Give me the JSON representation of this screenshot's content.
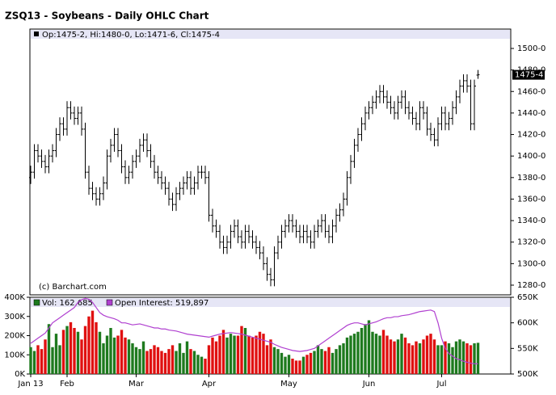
{
  "chart_data": [
    {
      "type": "ohlc",
      "title": "ZSQ13 - Soybeans - Daily OHLC Chart",
      "ohlc_label": "Op:1475-2, Hi:1480-0, Lo:1471-6, Cl:1475-4",
      "credit": "(c) Barchart.com",
      "last_label": "1475-4",
      "color": "#000000",
      "ylim": [
        1271,
        1518
      ],
      "yticks": [
        {
          "value": 1280,
          "label": "1280-0"
        },
        {
          "value": 1300,
          "label": "1300-0"
        },
        {
          "value": 1320,
          "label": "1320-0"
        },
        {
          "value": 1340,
          "label": "1340-0"
        },
        {
          "value": 1360,
          "label": "1360-0"
        },
        {
          "value": 1380,
          "label": "1380-0"
        },
        {
          "value": 1400,
          "label": "1400-0"
        },
        {
          "value": 1420,
          "label": "1420-0"
        },
        {
          "value": 1440,
          "label": "1440-0"
        },
        {
          "value": 1460,
          "label": "1460-0"
        },
        {
          "value": 1480,
          "label": "1480-0"
        },
        {
          "value": 1500,
          "label": "1500-0"
        }
      ],
      "open": [
        1380,
        1385,
        1405,
        1400,
        1395,
        1390,
        1400,
        1405,
        1420,
        1430,
        1425,
        1445,
        1440,
        1435,
        1440,
        1425,
        1385,
        1370,
        1365,
        1360,
        1365,
        1375,
        1400,
        1410,
        1420,
        1405,
        1390,
        1380,
        1385,
        1395,
        1400,
        1410,
        1415,
        1405,
        1395,
        1385,
        1380,
        1375,
        1370,
        1360,
        1355,
        1365,
        1370,
        1375,
        1380,
        1370,
        1375,
        1385,
        1385,
        1380,
        1345,
        1335,
        1330,
        1320,
        1315,
        1320,
        1330,
        1335,
        1325,
        1320,
        1330,
        1325,
        1320,
        1315,
        1310,
        1300,
        1290,
        1285,
        1310,
        1320,
        1330,
        1335,
        1340,
        1335,
        1330,
        1325,
        1330,
        1325,
        1320,
        1330,
        1335,
        1340,
        1330,
        1325,
        1335,
        1345,
        1350,
        1360,
        1380,
        1395,
        1410,
        1420,
        1430,
        1440,
        1445,
        1450,
        1455,
        1460,
        1455,
        1450,
        1445,
        1440,
        1450,
        1455,
        1445,
        1440,
        1435,
        1430,
        1445,
        1440,
        1425,
        1420,
        1415,
        1430,
        1440,
        1430,
        1435,
        1445,
        1455,
        1465,
        1470,
        1465,
        1430,
        1475.25
      ],
      "high": [
        1391,
        1411,
        1411,
        1406,
        1401,
        1406,
        1411,
        1426,
        1436,
        1436,
        1451,
        1451,
        1446,
        1446,
        1446,
        1431,
        1391,
        1376,
        1371,
        1371,
        1381,
        1406,
        1416,
        1426,
        1426,
        1411,
        1396,
        1391,
        1401,
        1406,
        1416,
        1421,
        1421,
        1411,
        1401,
        1391,
        1386,
        1381,
        1376,
        1366,
        1371,
        1376,
        1381,
        1386,
        1386,
        1381,
        1391,
        1391,
        1391,
        1386,
        1351,
        1341,
        1336,
        1326,
        1326,
        1336,
        1341,
        1341,
        1331,
        1336,
        1336,
        1331,
        1326,
        1321,
        1316,
        1306,
        1296,
        1316,
        1326,
        1336,
        1341,
        1346,
        1346,
        1341,
        1336,
        1336,
        1336,
        1331,
        1336,
        1341,
        1346,
        1346,
        1336,
        1341,
        1351,
        1356,
        1366,
        1386,
        1401,
        1416,
        1426,
        1436,
        1446,
        1451,
        1456,
        1461,
        1466,
        1466,
        1461,
        1456,
        1451,
        1456,
        1461,
        1461,
        1451,
        1446,
        1441,
        1451,
        1451,
        1446,
        1431,
        1426,
        1436,
        1446,
        1446,
        1441,
        1451,
        1461,
        1471,
        1476,
        1476,
        1471,
        1471,
        1480
      ],
      "low": [
        1374,
        1379,
        1394,
        1389,
        1384,
        1384,
        1394,
        1399,
        1414,
        1419,
        1419,
        1434,
        1429,
        1429,
        1419,
        1379,
        1364,
        1359,
        1354,
        1354,
        1359,
        1369,
        1394,
        1404,
        1399,
        1384,
        1374,
        1374,
        1379,
        1389,
        1394,
        1404,
        1399,
        1389,
        1379,
        1374,
        1369,
        1364,
        1354,
        1349,
        1349,
        1359,
        1364,
        1369,
        1364,
        1364,
        1369,
        1379,
        1374,
        1339,
        1329,
        1324,
        1314,
        1309,
        1309,
        1314,
        1324,
        1319,
        1314,
        1314,
        1319,
        1314,
        1309,
        1304,
        1294,
        1284,
        1279,
        1279,
        1304,
        1314,
        1324,
        1329,
        1329,
        1324,
        1319,
        1319,
        1319,
        1314,
        1314,
        1324,
        1329,
        1324,
        1319,
        1319,
        1329,
        1339,
        1344,
        1354,
        1374,
        1389,
        1404,
        1414,
        1424,
        1434,
        1439,
        1444,
        1449,
        1449,
        1444,
        1439,
        1434,
        1434,
        1444,
        1439,
        1434,
        1429,
        1424,
        1424,
        1434,
        1419,
        1414,
        1409,
        1409,
        1424,
        1424,
        1424,
        1429,
        1439,
        1449,
        1459,
        1459,
        1424,
        1424,
        1471.75
      ],
      "close": [
        1385,
        1405,
        1400,
        1395,
        1390,
        1400,
        1405,
        1420,
        1430,
        1425,
        1445,
        1440,
        1435,
        1440,
        1425,
        1385,
        1370,
        1365,
        1360,
        1365,
        1375,
        1400,
        1410,
        1420,
        1405,
        1390,
        1380,
        1385,
        1395,
        1400,
        1410,
        1415,
        1405,
        1395,
        1385,
        1380,
        1375,
        1370,
        1360,
        1355,
        1365,
        1370,
        1375,
        1380,
        1370,
        1375,
        1385,
        1385,
        1380,
        1345,
        1335,
        1330,
        1320,
        1315,
        1320,
        1330,
        1335,
        1325,
        1320,
        1330,
        1325,
        1320,
        1315,
        1310,
        1300,
        1290,
        1285,
        1310,
        1320,
        1330,
        1335,
        1340,
        1335,
        1330,
        1325,
        1330,
        1325,
        1320,
        1330,
        1335,
        1340,
        1330,
        1325,
        1335,
        1345,
        1350,
        1360,
        1380,
        1395,
        1410,
        1420,
        1430,
        1440,
        1445,
        1450,
        1455,
        1460,
        1455,
        1450,
        1445,
        1440,
        1450,
        1455,
        1445,
        1440,
        1435,
        1430,
        1445,
        1440,
        1425,
        1420,
        1415,
        1430,
        1440,
        1430,
        1435,
        1445,
        1455,
        1465,
        1470,
        1465,
        1430,
        1465,
        1475.5
      ]
    },
    {
      "type": "volume",
      "categories": [
        "Jan 13",
        null,
        null,
        null,
        null,
        null,
        null,
        null,
        null,
        null,
        "Feb",
        null,
        null,
        null,
        null,
        null,
        null,
        null,
        null,
        null,
        null,
        null,
        null,
        null,
        null,
        null,
        null,
        null,
        null,
        "Mar",
        null,
        null,
        null,
        null,
        null,
        null,
        null,
        null,
        null,
        null,
        null,
        null,
        null,
        null,
        null,
        null,
        null,
        null,
        null,
        "Apr",
        null,
        null,
        null,
        null,
        null,
        null,
        null,
        null,
        null,
        null,
        null,
        null,
        null,
        null,
        null,
        null,
        null,
        null,
        null,
        null,
        null,
        "May",
        null,
        null,
        null,
        null,
        null,
        null,
        null,
        null,
        null,
        null,
        null,
        null,
        null,
        null,
        null,
        null,
        null,
        null,
        null,
        null,
        null,
        "Jun",
        null,
        null,
        null,
        null,
        null,
        null,
        null,
        null,
        null,
        null,
        null,
        null,
        null,
        null,
        null,
        null,
        null,
        null,
        null,
        "Jul",
        null,
        null,
        null,
        null,
        null,
        null,
        null,
        null,
        null,
        null
      ],
      "ylim": [
        0,
        400000
      ],
      "yticks": [
        {
          "value": 0,
          "label": "0K"
        },
        {
          "value": 100000,
          "label": "100K"
        },
        {
          "value": 200000,
          "label": "200K"
        },
        {
          "value": 300000,
          "label": "300K"
        },
        {
          "value": 400000,
          "label": "400K"
        }
      ],
      "y2lim": [
        500000,
        650000
      ],
      "y2ticks": [
        {
          "value": 500000,
          "label": "500K"
        },
        {
          "value": 550000,
          "label": "550K"
        },
        {
          "value": 600000,
          "label": "600K"
        },
        {
          "value": 650000,
          "label": "650K"
        }
      ],
      "up_color": "#1e7a1e",
      "down_color": "#e01010",
      "series": [
        {
          "name": "Vol: 162,685",
          "color": "#1e7a1e",
          "values": [
            140000,
            120000,
            150000,
            130000,
            180000,
            260000,
            140000,
            210000,
            150000,
            230000,
            250000,
            270000,
            240000,
            220000,
            180000,
            250000,
            300000,
            330000,
            270000,
            220000,
            160000,
            200000,
            240000,
            190000,
            200000,
            230000,
            190000,
            180000,
            160000,
            140000,
            130000,
            170000,
            120000,
            130000,
            150000,
            140000,
            120000,
            110000,
            130000,
            150000,
            120000,
            160000,
            110000,
            170000,
            130000,
            120000,
            100000,
            90000,
            80000,
            150000,
            190000,
            170000,
            200000,
            230000,
            190000,
            210000,
            200000,
            200000,
            250000,
            240000,
            200000,
            190000,
            200000,
            220000,
            210000,
            150000,
            180000,
            140000,
            130000,
            110000,
            90000,
            100000,
            80000,
            70000,
            70000,
            90000,
            100000,
            110000,
            120000,
            150000,
            130000,
            120000,
            140000,
            110000,
            130000,
            150000,
            160000,
            190000,
            200000,
            210000,
            220000,
            240000,
            260000,
            280000,
            220000,
            210000,
            200000,
            230000,
            200000,
            180000,
            170000,
            180000,
            210000,
            190000,
            160000,
            150000,
            170000,
            160000,
            180000,
            200000,
            210000,
            180000,
            150000,
            150000,
            170000,
            160000,
            140000,
            170000,
            180000,
            170000,
            160000,
            150000,
            160000,
            162685
          ]
        },
        {
          "name": "Open Interest: 519,897",
          "color": "#b040d0",
          "axis": "y2",
          "values": [
            560000,
            565000,
            570000,
            575000,
            580000,
            590000,
            600000,
            605000,
            610000,
            615000,
            620000,
            625000,
            630000,
            640000,
            645000,
            648000,
            646000,
            640000,
            630000,
            620000,
            615000,
            612000,
            610000,
            608000,
            605000,
            600000,
            600000,
            598000,
            596000,
            597000,
            598000,
            596000,
            594000,
            592000,
            590000,
            590000,
            588000,
            588000,
            586000,
            585000,
            584000,
            582000,
            580000,
            578000,
            577000,
            576000,
            575000,
            574000,
            573000,
            572000,
            574000,
            576000,
            578000,
            579000,
            580000,
            581000,
            580000,
            579000,
            578000,
            576000,
            574000,
            572000,
            570000,
            568000,
            566000,
            564000,
            562000,
            558000,
            555000,
            552000,
            550000,
            548000,
            546000,
            545000,
            544000,
            545000,
            546000,
            548000,
            550000,
            555000,
            560000,
            565000,
            570000,
            575000,
            580000,
            585000,
            590000,
            595000,
            598000,
            600000,
            600000,
            598000,
            596000,
            598000,
            600000,
            602000,
            605000,
            608000,
            610000,
            610000,
            612000,
            612000,
            614000,
            615000,
            616000,
            618000,
            620000,
            622000,
            623000,
            624000,
            625000,
            622000,
            600000,
            570000,
            550000,
            540000,
            535000,
            530000,
            528000,
            525000,
            523000,
            521000,
            520000,
            519897
          ]
        }
      ]
    }
  ]
}
